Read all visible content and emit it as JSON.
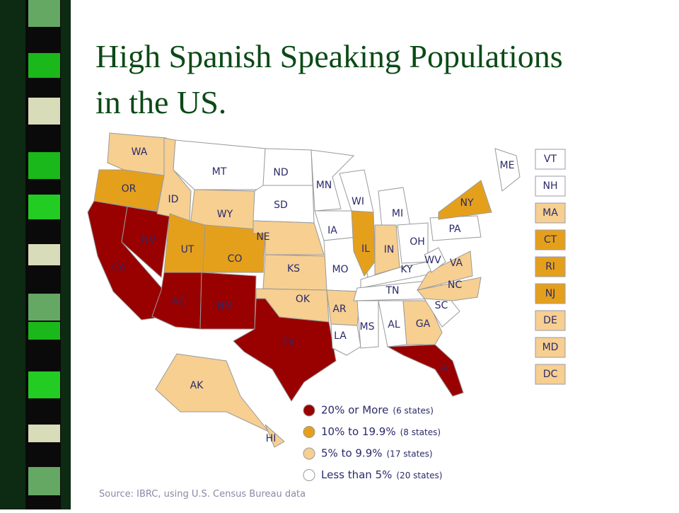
{
  "title_lines": [
    "High Spanish Speaking Populations",
    "in the US."
  ],
  "states": [
    {
      "label": "WA",
      "color": "#f6cf91"
    },
    {
      "label": "OR",
      "color": "#e5a01b"
    },
    {
      "label": "CA",
      "color": "#990000"
    },
    {
      "label": "NV",
      "color": "#990000"
    },
    {
      "label": "ID",
      "color": "#f6cf91"
    },
    {
      "label": "MT",
      "color": "#ffffff"
    },
    {
      "label": "WY",
      "color": "#f6cf91"
    },
    {
      "label": "UT",
      "color": "#e5a01b"
    },
    {
      "label": "CO",
      "color": "#e5a01b"
    },
    {
      "label": "AZ",
      "color": "#990000"
    },
    {
      "label": "NM",
      "color": "#990000"
    },
    {
      "label": "ND",
      "color": "#ffffff"
    },
    {
      "label": "SD",
      "color": "#ffffff"
    },
    {
      "label": "NE",
      "color": "#f6cf91"
    },
    {
      "label": "KS",
      "color": "#f6cf91"
    },
    {
      "label": "OK",
      "color": "#f6cf91"
    },
    {
      "label": "TX",
      "color": "#990000"
    },
    {
      "label": "MN",
      "color": "#ffffff"
    },
    {
      "label": "IA",
      "color": "#ffffff"
    },
    {
      "label": "MO",
      "color": "#ffffff"
    },
    {
      "label": "AR",
      "color": "#f6cf91"
    },
    {
      "label": "LA",
      "color": "#ffffff"
    },
    {
      "label": "WI",
      "color": "#ffffff"
    },
    {
      "label": "IL",
      "color": "#e5a01b"
    },
    {
      "label": "MI",
      "color": "#ffffff"
    },
    {
      "label": "IN",
      "color": "#f6cf91"
    },
    {
      "label": "OH",
      "color": "#ffffff"
    },
    {
      "label": "KY",
      "color": "#ffffff"
    },
    {
      "label": "TN",
      "color": "#ffffff"
    },
    {
      "label": "MS",
      "color": "#ffffff"
    },
    {
      "label": "AL",
      "color": "#ffffff"
    },
    {
      "label": "GA",
      "color": "#f6cf91"
    },
    {
      "label": "FL",
      "color": "#990000"
    },
    {
      "label": "SC",
      "color": "#ffffff"
    },
    {
      "label": "NC",
      "color": "#f6cf91"
    },
    {
      "label": "VA",
      "color": "#f6cf91"
    },
    {
      "label": "WV",
      "color": "#ffffff"
    },
    {
      "label": "PA",
      "color": "#ffffff"
    },
    {
      "label": "NY",
      "color": "#e5a01b"
    },
    {
      "label": "ME",
      "color": "#ffffff"
    },
    {
      "label": "AK",
      "color": "#f6cf91"
    },
    {
      "label": "HI",
      "color": "#f6cf91"
    }
  ],
  "small_states": [
    {
      "label": "VT",
      "color": "#ffffff"
    },
    {
      "label": "NH",
      "color": "#ffffff"
    },
    {
      "label": "MA",
      "color": "#f6cf91"
    },
    {
      "label": "CT",
      "color": "#e5a01b"
    },
    {
      "label": "RI",
      "color": "#e5a01b"
    },
    {
      "label": "NJ",
      "color": "#e5a01b"
    },
    {
      "label": "DE",
      "color": "#f6cf91"
    },
    {
      "label": "MD",
      "color": "#f6cf91"
    },
    {
      "label": "DC",
      "color": "#f6cf91"
    }
  ],
  "legend": [
    {
      "label": "20% or More",
      "note": "(6 states)",
      "color": "#990000"
    },
    {
      "label": "10% to 19.9%",
      "note": "(8 states)",
      "color": "#e5a01b"
    },
    {
      "label": "5% to 9.9%",
      "note": "(17 states)",
      "color": "#f6cf91"
    },
    {
      "label": "Less than 5%",
      "note": "(20 states)",
      "color": "#ffffff"
    }
  ],
  "source": "Source: IBRC, using U.S. Census Bureau data"
}
